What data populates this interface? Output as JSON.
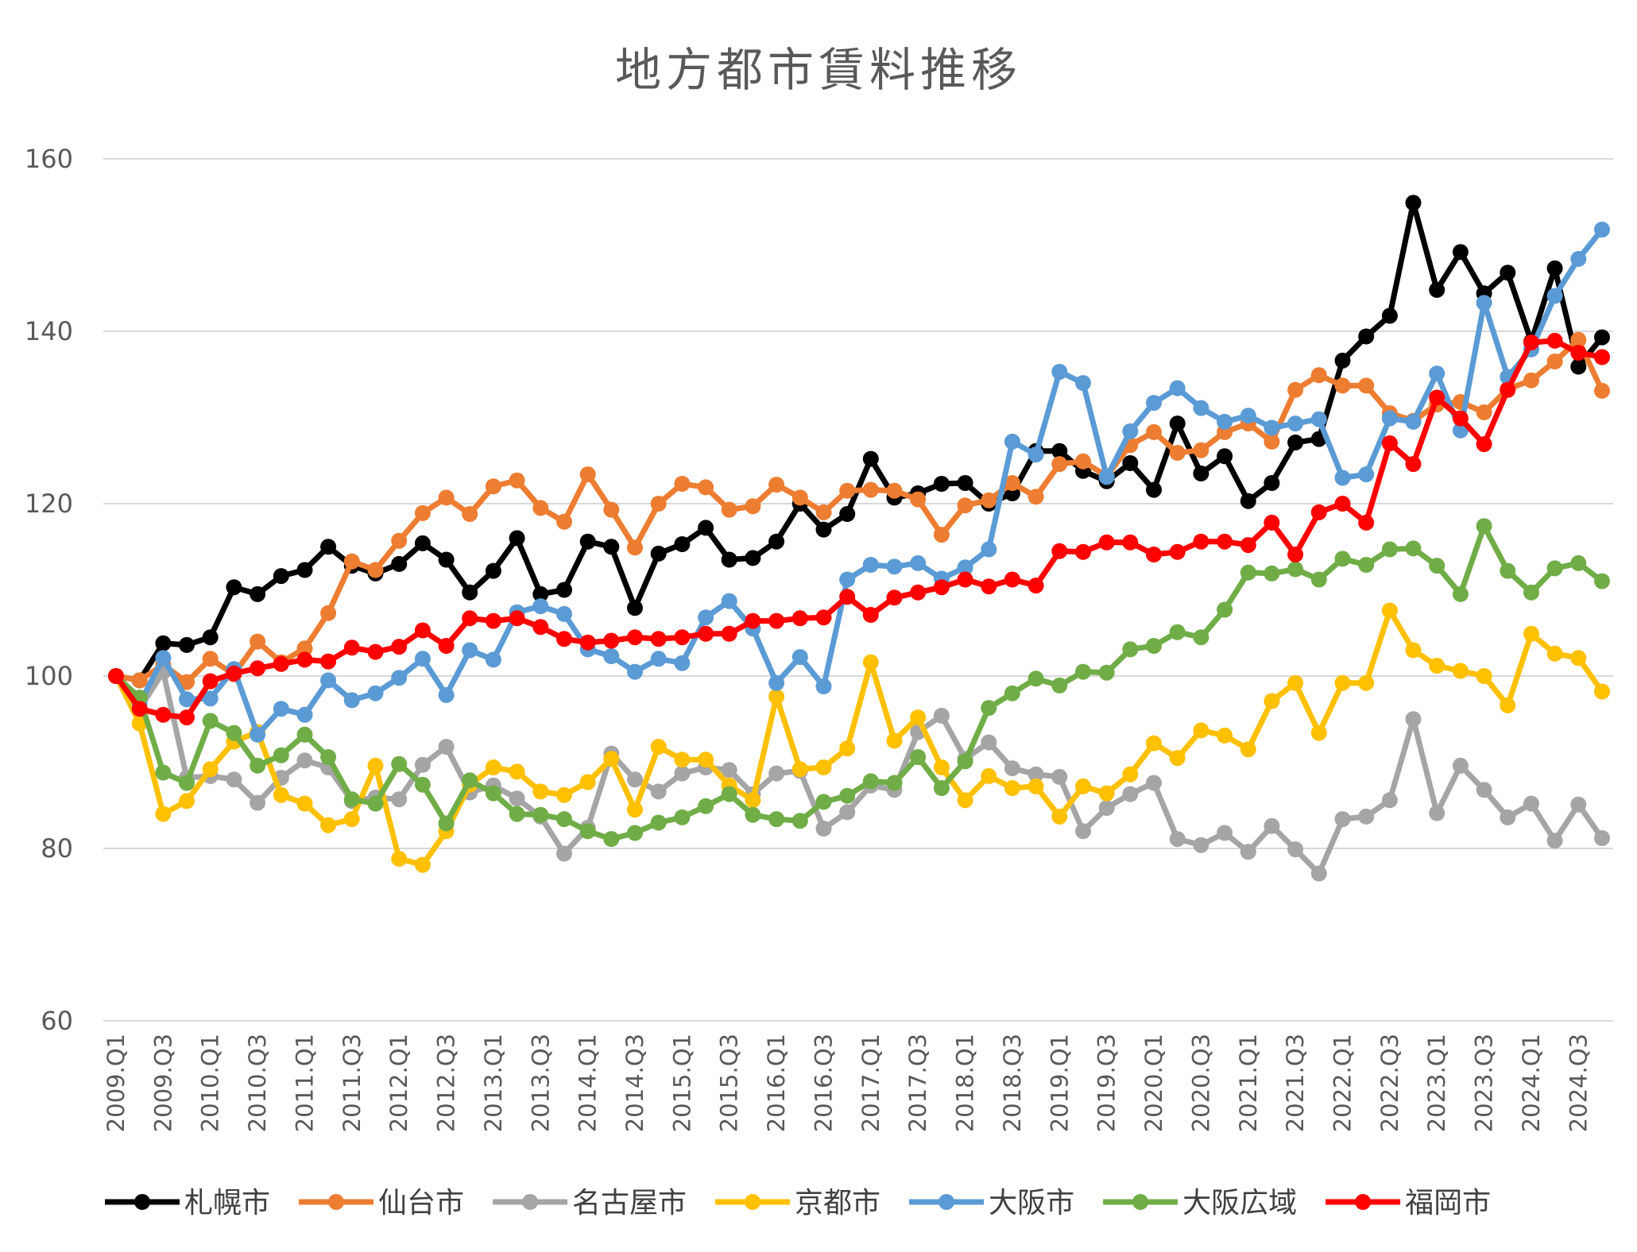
{
  "chart_data": {
    "type": "line",
    "title": "地方都市賃料推移",
    "xlabel": "",
    "ylabel": "",
    "ylim": [
      60,
      160
    ],
    "yticks": [
      60,
      80,
      100,
      120,
      140,
      160
    ],
    "grid": true,
    "legend_position": "bottom",
    "x_tick_labels": [
      "2009.Q1",
      "2009.Q3",
      "2010.Q1",
      "2010.Q3",
      "2011.Q1",
      "2011.Q3",
      "2012.Q1",
      "2012.Q3",
      "2013.Q1",
      "2013.Q3",
      "2014.Q1",
      "2014.Q3",
      "2015.Q1",
      "2015.Q3",
      "2016.Q1",
      "2016.Q3",
      "2017.Q1",
      "2017.Q3",
      "2018.Q1",
      "2018.Q3",
      "2019.Q1",
      "2019.Q3",
      "2020.Q1",
      "2020.Q3",
      "2021.Q1",
      "2021.Q3",
      "2022.Q1",
      "2022.Q3",
      "2023.Q1",
      "2023.Q3",
      "2024.Q1",
      "2024.Q3"
    ],
    "categories": [
      "2009.Q1",
      "2009.Q2",
      "2009.Q3",
      "2009.Q4",
      "2010.Q1",
      "2010.Q2",
      "2010.Q3",
      "2010.Q4",
      "2011.Q1",
      "2011.Q2",
      "2011.Q3",
      "2011.Q4",
      "2012.Q1",
      "2012.Q2",
      "2012.Q3",
      "2012.Q4",
      "2013.Q1",
      "2013.Q2",
      "2013.Q3",
      "2013.Q4",
      "2014.Q1",
      "2014.Q2",
      "2014.Q3",
      "2014.Q4",
      "2015.Q1",
      "2015.Q2",
      "2015.Q3",
      "2015.Q4",
      "2016.Q1",
      "2016.Q2",
      "2016.Q3",
      "2016.Q4",
      "2017.Q1",
      "2017.Q2",
      "2017.Q3",
      "2017.Q4",
      "2018.Q1",
      "2018.Q2",
      "2018.Q3",
      "2018.Q4",
      "2019.Q1",
      "2019.Q2",
      "2019.Q3",
      "2019.Q4",
      "2020.Q1",
      "2020.Q2",
      "2020.Q3",
      "2020.Q4",
      "2021.Q1",
      "2021.Q2",
      "2021.Q3",
      "2021.Q4",
      "2022.Q1",
      "2022.Q2",
      "2022.Q3",
      "2022.Q4",
      "2023.Q1",
      "2023.Q2",
      "2023.Q3",
      "2023.Q4",
      "2024.Q1",
      "2024.Q2",
      "2024.Q3",
      "2024.Q4"
    ],
    "series": [
      {
        "name": "札幌市",
        "color": "#000000",
        "values": [
          100,
          99.5,
          103.8,
          103.6,
          104.5,
          110.3,
          109.5,
          111.6,
          112.3,
          115,
          112.8,
          111.9,
          113,
          115.4,
          113.5,
          109.7,
          112.2,
          116,
          109.5,
          110,
          115.6,
          115,
          107.9,
          114.2,
          115.3,
          117.2,
          113.5,
          113.7,
          115.6,
          120,
          117,
          118.8,
          125.2,
          120.7,
          121.2,
          122.3,
          122.4,
          120,
          121.2,
          126.1,
          126.1,
          123.8,
          122.6,
          124.7,
          121.6,
          129.3,
          123.5,
          125.5,
          120.3,
          122.4,
          127.1,
          127.5,
          136.6,
          139.4,
          141.8,
          154.9,
          144.8,
          149.2,
          144.4,
          146.8,
          138.8,
          147.3,
          135.9,
          139.3
        ]
      },
      {
        "name": "仙台市",
        "color": "#ED7D31",
        "values": [
          100,
          99.5,
          101.3,
          99.3,
          102,
          100.2,
          104,
          101.6,
          103.2,
          107.3,
          113.3,
          112.3,
          115.7,
          118.9,
          120.7,
          118.8,
          122,
          122.7,
          119.5,
          117.9,
          123.4,
          119.3,
          114.9,
          120,
          122.3,
          121.9,
          119.3,
          119.7,
          122.2,
          120.7,
          119,
          121.5,
          121.6,
          121.5,
          120.5,
          116.4,
          119.8,
          120.4,
          122.4,
          120.8,
          124.6,
          124.9,
          123.2,
          126.8,
          128.3,
          125.9,
          126.2,
          128.3,
          129.3,
          127.2,
          133.2,
          134.9,
          133.7,
          133.7,
          130.5,
          129.6,
          131.5,
          131.8,
          130.6,
          133.3,
          134.3,
          136.5,
          139,
          133.1
        ]
      },
      {
        "name": "名古屋市",
        "color": "#A5A5A5",
        "values": [
          100,
          96.2,
          100.5,
          88.2,
          88.4,
          88,
          85.3,
          88.2,
          90.2,
          89.4,
          85.5,
          85.9,
          85.7,
          89.7,
          91.8,
          86.5,
          87.3,
          85.8,
          83.7,
          79.4,
          82.4,
          91,
          88,
          86.6,
          88.7,
          89.4,
          89.1,
          86.3,
          88.7,
          89,
          82.3,
          84.2,
          87.3,
          86.8,
          93.5,
          95.4,
          90.4,
          92.3,
          89.3,
          88.6,
          88.3,
          82,
          84.7,
          86.3,
          87.6,
          81.1,
          80.4,
          81.8,
          79.6,
          82.6,
          79.9,
          77.1,
          83.4,
          83.7,
          85.6,
          95,
          84.1,
          89.6,
          86.8,
          83.6,
          85.2,
          80.9,
          85.1,
          81.2
        ]
      },
      {
        "name": "京都市",
        "color": "#FFC000",
        "values": [
          100,
          94.5,
          84,
          85.5,
          89.2,
          92.4,
          93.5,
          86.2,
          85.2,
          82.7,
          83.4,
          89.6,
          78.8,
          78.1,
          82,
          87.4,
          89.4,
          88.9,
          86.6,
          86.2,
          87.7,
          90.4,
          84.5,
          91.8,
          90.3,
          90.3,
          87.3,
          85.6,
          97.6,
          89.2,
          89.4,
          91.6,
          101.6,
          92.5,
          95.2,
          89.4,
          85.6,
          88.4,
          87,
          87.2,
          83.7,
          87.2,
          86.4,
          88.6,
          92.2,
          90.5,
          93.7,
          93.1,
          91.5,
          97.1,
          99.2,
          93.4,
          99.2,
          99.2,
          107.6,
          103,
          101.2,
          100.6,
          100,
          96.6,
          104.9,
          102.6,
          102.1,
          98.2
        ]
      },
      {
        "name": "大阪市",
        "color": "#5B9BD5",
        "values": [
          100,
          96.8,
          102.1,
          97.3,
          97.4,
          100.8,
          93.2,
          96.2,
          95.5,
          99.5,
          97.2,
          98,
          99.8,
          102,
          97.8,
          103,
          101.9,
          107.4,
          108.1,
          107.2,
          103.1,
          102.3,
          100.5,
          102,
          101.5,
          106.8,
          108.7,
          105.5,
          99.2,
          102.2,
          98.8,
          111.2,
          112.9,
          112.7,
          113.1,
          111.3,
          112.6,
          114.7,
          127.2,
          125.7,
          135.3,
          134,
          123.1,
          128.4,
          131.7,
          133.4,
          131.1,
          129.5,
          130.2,
          128.8,
          129.3,
          129.8,
          123,
          123.4,
          129.9,
          129.5,
          135.1,
          128.5,
          143.3,
          134.7,
          137.9,
          144.1,
          148.4,
          151.8
        ]
      },
      {
        "name": "大阪広域",
        "color": "#70AD47",
        "values": [
          100,
          97.5,
          88.8,
          87.6,
          94.8,
          93.4,
          89.6,
          90.8,
          93.2,
          90.6,
          85.7,
          85.2,
          89.8,
          87.4,
          82.9,
          87.9,
          86.4,
          84,
          83.9,
          83.4,
          82,
          81.1,
          81.8,
          83,
          83.6,
          84.9,
          86.3,
          83.9,
          83.4,
          83.2,
          85.4,
          86.1,
          87.8,
          87.6,
          90.6,
          87,
          90.1,
          96.3,
          98,
          99.7,
          98.9,
          100.5,
          100.4,
          103.1,
          103.5,
          105.1,
          104.5,
          107.7,
          112,
          111.9,
          112.4,
          111.2,
          113.6,
          112.9,
          114.7,
          114.8,
          112.8,
          109.5,
          117.4,
          112.2,
          109.7,
          112.5,
          113.1,
          111
        ]
      },
      {
        "name": "福岡市",
        "color": "#FF0000",
        "values": [
          100,
          96.2,
          95.5,
          95.2,
          99.4,
          100.3,
          100.9,
          101.4,
          101.9,
          101.7,
          103.3,
          102.8,
          103.4,
          105.3,
          103.5,
          106.7,
          106.4,
          106.7,
          105.7,
          104.3,
          103.9,
          104.1,
          104.5,
          104.3,
          104.5,
          104.9,
          104.9,
          106.4,
          106.4,
          106.7,
          106.8,
          109.2,
          107.1,
          109.1,
          109.7,
          110.3,
          111.2,
          110.4,
          111.2,
          110.5,
          114.5,
          114.4,
          115.5,
          115.5,
          114.1,
          114.4,
          115.6,
          115.6,
          115.2,
          117.8,
          114.1,
          119,
          120,
          117.8,
          127,
          124.6,
          132.3,
          129.9,
          126.9,
          133.2,
          138.7,
          138.9,
          137.5,
          137
        ]
      }
    ]
  }
}
